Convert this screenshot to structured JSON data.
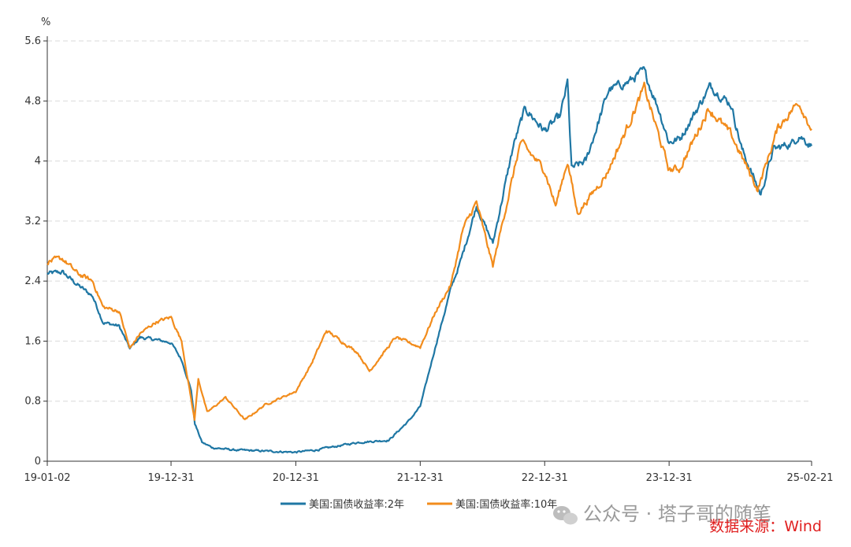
{
  "chart_data": {
    "type": "line",
    "ylabel": "%",
    "ylim": [
      0,
      5.6
    ],
    "yticks": [
      "0",
      "0.8",
      "1.6",
      "2.4",
      "3.2",
      "4",
      "4.8",
      "5.6"
    ],
    "ytick_values": [
      0,
      0.8,
      1.6,
      2.4,
      3.2,
      4.0,
      4.8,
      5.6
    ],
    "xlim": [
      "2019-01-02",
      "2025-02-21"
    ],
    "xticks": [
      "19-01-02",
      "19-12-31",
      "20-12-31",
      "21-12-31",
      "22-12-31",
      "23-12-31",
      "25-02-21"
    ],
    "xtick_dates": [
      "2019-01-02",
      "2019-12-31",
      "2020-12-31",
      "2021-12-31",
      "2022-12-31",
      "2023-12-31",
      "2025-02-21"
    ],
    "grid": "horizontal dashed",
    "legend_position": "bottom",
    "series": [
      {
        "name": "美国:国债收益率:2年",
        "color": "#1f77a4",
        "points": [
          [
            "2019-01-02",
            2.5
          ],
          [
            "2019-02-15",
            2.52
          ],
          [
            "2019-04-01",
            2.35
          ],
          [
            "2019-05-15",
            2.2
          ],
          [
            "2019-06-15",
            1.85
          ],
          [
            "2019-08-01",
            1.8
          ],
          [
            "2019-09-01",
            1.5
          ],
          [
            "2019-10-01",
            1.65
          ],
          [
            "2019-11-15",
            1.62
          ],
          [
            "2019-12-31",
            1.58
          ],
          [
            "2020-01-31",
            1.35
          ],
          [
            "2020-02-28",
            0.95
          ],
          [
            "2020-03-10",
            0.5
          ],
          [
            "2020-03-31",
            0.25
          ],
          [
            "2020-05-01",
            0.18
          ],
          [
            "2020-07-01",
            0.15
          ],
          [
            "2020-09-01",
            0.14
          ],
          [
            "2020-12-31",
            0.12
          ],
          [
            "2021-03-01",
            0.15
          ],
          [
            "2021-06-30",
            0.25
          ],
          [
            "2021-09-30",
            0.28
          ],
          [
            "2021-11-30",
            0.55
          ],
          [
            "2021-12-31",
            0.73
          ],
          [
            "2022-02-15",
            1.55
          ],
          [
            "2022-03-31",
            2.3
          ],
          [
            "2022-05-01",
            2.7
          ],
          [
            "2022-06-14",
            3.4
          ],
          [
            "2022-08-01",
            2.9
          ],
          [
            "2022-09-30",
            4.2
          ],
          [
            "2022-11-04",
            4.7
          ],
          [
            "2022-12-31",
            4.4
          ],
          [
            "2023-02-15",
            4.6
          ],
          [
            "2023-03-08",
            5.05
          ],
          [
            "2023-03-20",
            3.9
          ],
          [
            "2023-05-01",
            4.0
          ],
          [
            "2023-07-07",
            4.95
          ],
          [
            "2023-09-01",
            5.05
          ],
          [
            "2023-10-18",
            5.2
          ],
          [
            "2023-11-30",
            4.7
          ],
          [
            "2023-12-31",
            4.25
          ],
          [
            "2024-02-01",
            4.3
          ],
          [
            "2024-04-30",
            5.0
          ],
          [
            "2024-06-30",
            4.75
          ],
          [
            "2024-08-01",
            4.15
          ],
          [
            "2024-09-25",
            3.55
          ],
          [
            "2024-10-31",
            4.15
          ],
          [
            "2024-12-31",
            4.25
          ],
          [
            "2025-01-15",
            4.35
          ],
          [
            "2025-02-21",
            4.2
          ]
        ]
      },
      {
        "name": "美国:国债收益率:10年",
        "color": "#f28c1c",
        "points": [
          [
            "2019-01-02",
            2.66
          ],
          [
            "2019-02-15",
            2.7
          ],
          [
            "2019-04-01",
            2.5
          ],
          [
            "2019-05-15",
            2.4
          ],
          [
            "2019-06-15",
            2.05
          ],
          [
            "2019-08-01",
            2.0
          ],
          [
            "2019-09-01",
            1.5
          ],
          [
            "2019-10-01",
            1.7
          ],
          [
            "2019-11-15",
            1.85
          ],
          [
            "2019-12-31",
            1.92
          ],
          [
            "2020-01-31",
            1.6
          ],
          [
            "2020-03-09",
            0.55
          ],
          [
            "2020-03-20",
            1.1
          ],
          [
            "2020-04-15",
            0.65
          ],
          [
            "2020-06-08",
            0.85
          ],
          [
            "2020-08-04",
            0.55
          ],
          [
            "2020-10-01",
            0.75
          ],
          [
            "2020-12-31",
            0.93
          ],
          [
            "2021-02-15",
            1.3
          ],
          [
            "2021-03-31",
            1.74
          ],
          [
            "2021-06-30",
            1.45
          ],
          [
            "2021-08-04",
            1.2
          ],
          [
            "2021-10-20",
            1.65
          ],
          [
            "2021-12-31",
            1.52
          ],
          [
            "2022-02-15",
            2.0
          ],
          [
            "2022-03-31",
            2.35
          ],
          [
            "2022-05-06",
            3.1
          ],
          [
            "2022-06-14",
            3.45
          ],
          [
            "2022-08-01",
            2.6
          ],
          [
            "2022-10-21",
            4.25
          ],
          [
            "2022-12-31",
            3.88
          ],
          [
            "2023-02-01",
            3.4
          ],
          [
            "2023-03-08",
            4.0
          ],
          [
            "2023-04-06",
            3.3
          ],
          [
            "2023-06-30",
            3.82
          ],
          [
            "2023-08-21",
            4.35
          ],
          [
            "2023-10-19",
            4.98
          ],
          [
            "2023-11-30",
            4.35
          ],
          [
            "2023-12-31",
            3.88
          ],
          [
            "2024-02-01",
            3.9
          ],
          [
            "2024-04-25",
            4.7
          ],
          [
            "2024-06-30",
            4.35
          ],
          [
            "2024-09-16",
            3.62
          ],
          [
            "2024-11-15",
            4.45
          ],
          [
            "2025-01-14",
            4.79
          ],
          [
            "2025-02-21",
            4.43
          ]
        ]
      }
    ]
  },
  "watermark": "公众号 · 塔子哥的随笔",
  "source": "数据来源：Wind"
}
